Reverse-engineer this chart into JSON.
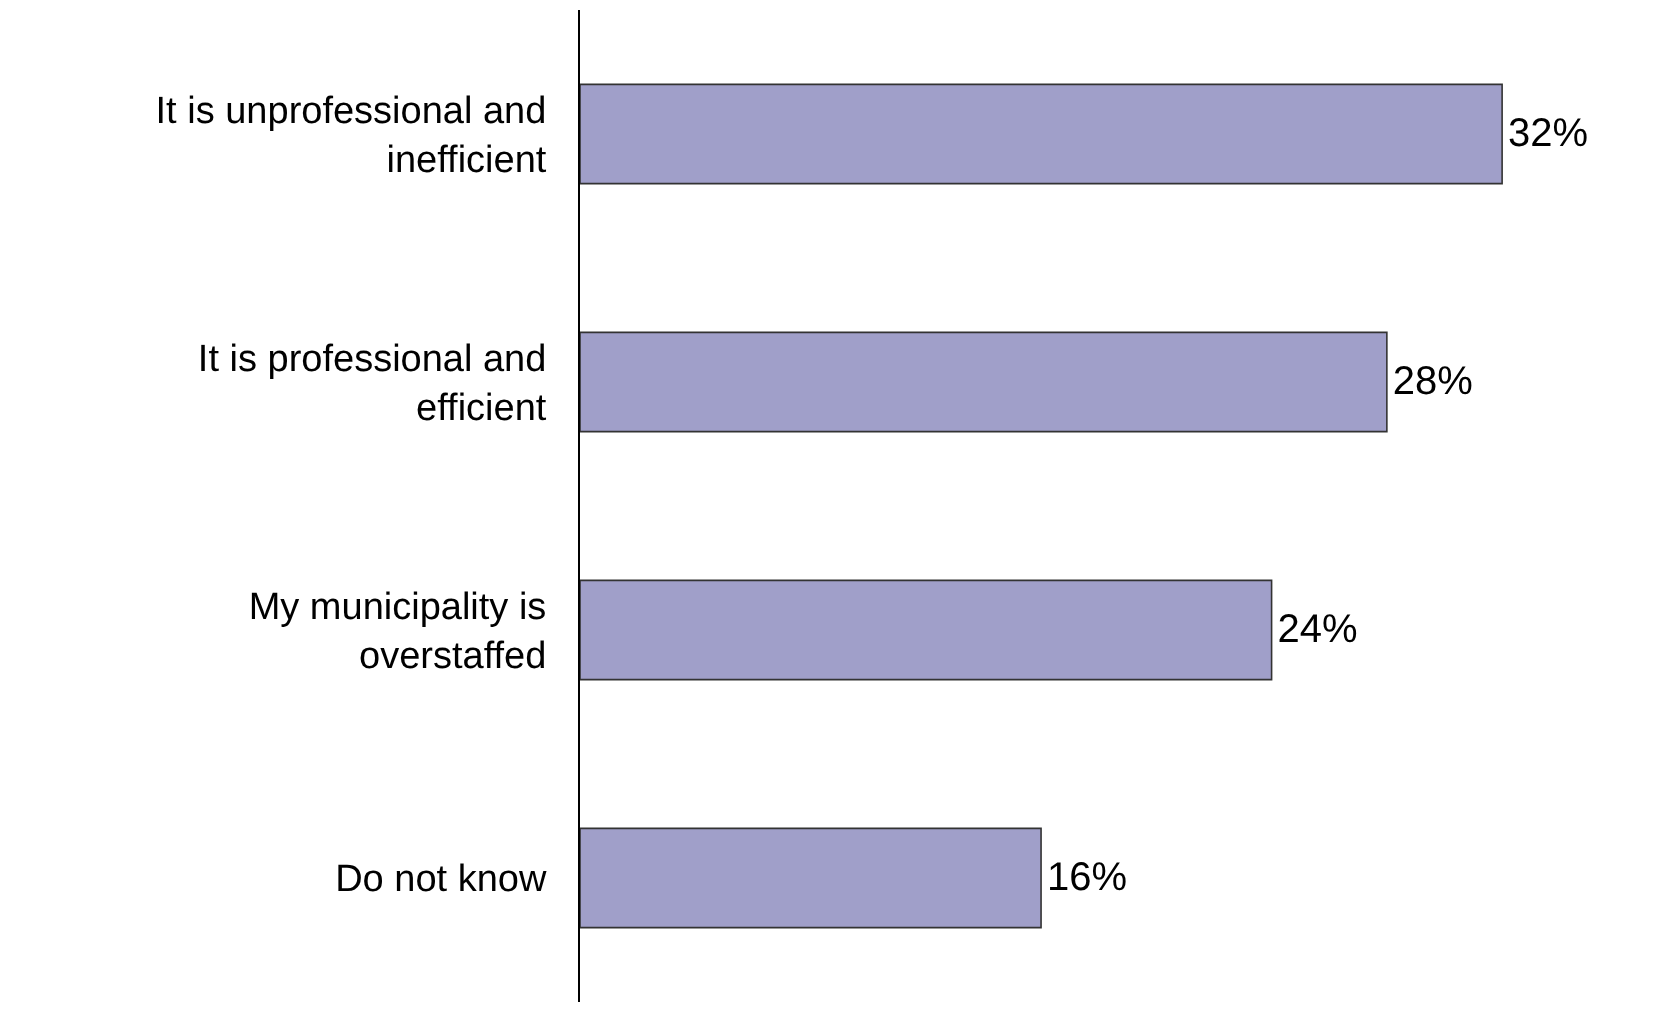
{
  "chart_data": {
    "type": "bar",
    "orientation": "horizontal",
    "categories": [
      "It is unprofessional and inefficient",
      "It is professional and efficient",
      "My municipality is overstaffed",
      "Do not know"
    ],
    "values": [
      32,
      28,
      24,
      16
    ],
    "color": "#a09fc9",
    "tick_labels": "y",
    "value_labels": [
      "32%",
      "28%",
      "24%",
      "16%"
    ],
    "legend": false
  }
}
